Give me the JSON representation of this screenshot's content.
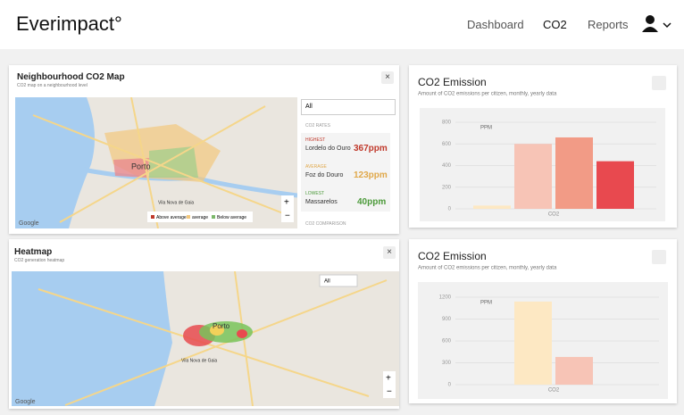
{
  "header": {
    "logo": "Everimpact°",
    "nav": [
      "Dashboard",
      "CO2",
      "Reports"
    ]
  },
  "map_panel": {
    "title": "Neighbourhood CO2 Map",
    "subtitle": "CO2 map on a neighbourhood level",
    "select": "All",
    "map_labels": [
      "Porto",
      "Vila Nova de Gaia",
      "Google"
    ],
    "rates": {
      "heading": "CO2 RATES",
      "items": [
        {
          "label": "HIGHEST",
          "place": "Lordelo do Ouro",
          "value": "367ppm"
        },
        {
          "label": "AVERAGE",
          "place": "Foz do Douro",
          "value": "123ppm"
        },
        {
          "label": "LOWEST",
          "place": "Massarelos",
          "value": "40ppm"
        }
      ],
      "footer": "CO2 COMPARISON"
    },
    "legend": [
      "Above average",
      "average",
      "Below average"
    ]
  },
  "heatmap_panel": {
    "title": "Heatmap",
    "subtitle": "CO2 generation heatmap",
    "select": "All",
    "map_labels": [
      "Porto",
      "Vila Nova de Gaia",
      "Google"
    ]
  },
  "chart_data": [
    {
      "type": "bar",
      "title": "CO2 Emission",
      "subtitle": "Amount of CO2 emissions per citizen, monthly, yearly data",
      "y_label": "PPM",
      "categories": [
        "CO2"
      ],
      "ylim": [
        0,
        800
      ],
      "yticks": [
        0,
        200,
        400,
        600,
        800
      ],
      "grid": true,
      "series": [
        {
          "color": "#fde8c3",
          "values": [
            30
          ]
        },
        {
          "color": "#f7c4b6",
          "values": [
            600
          ]
        },
        {
          "color": "#f29b86",
          "values": [
            660
          ]
        },
        {
          "color": "#e8494f",
          "values": [
            440
          ]
        }
      ]
    },
    {
      "type": "bar",
      "title": "CO2 Emission",
      "subtitle": "Amount of CO2 emissions per citizen, monthly, yearly data",
      "y_label": "PPM",
      "categories": [
        "CO2"
      ],
      "ylim": [
        0,
        1200
      ],
      "yticks": [
        0,
        300,
        600,
        900,
        1200
      ],
      "grid": true,
      "series": [
        {
          "color": "#fde8c3",
          "values": [
            1140
          ]
        },
        {
          "color": "#f7c4b6",
          "values": [
            380
          ]
        }
      ]
    }
  ]
}
